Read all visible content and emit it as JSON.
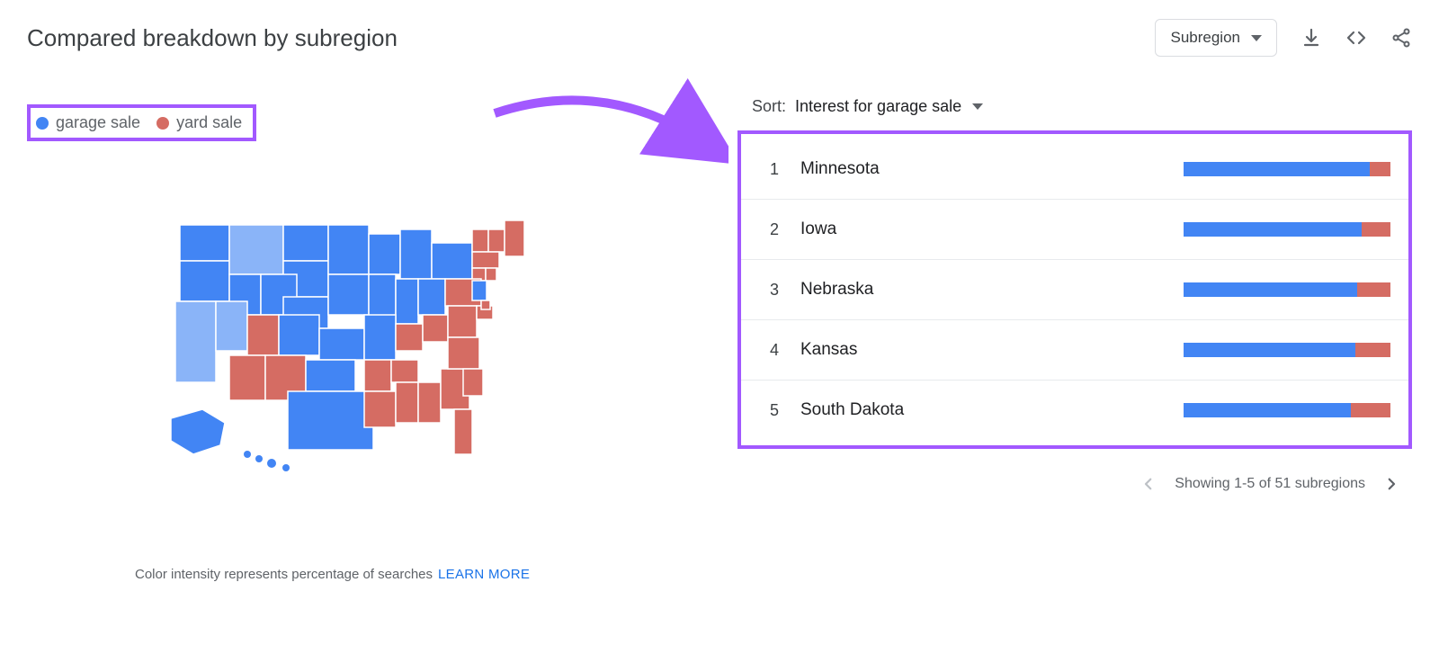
{
  "colors": {
    "blue": "#4285f4",
    "blue_light": "#8ab4f8",
    "red": "#d56c63",
    "annotation_purple": "#a259ff",
    "text": "#3c4043",
    "grey": "#5f6368",
    "divider": "#e8eaed",
    "link": "#1a73e8"
  },
  "header": {
    "title": "Compared breakdown by subregion",
    "subregion_button": "Subregion"
  },
  "legend": {
    "items": [
      {
        "label": "garage sale",
        "color": "#4285f4"
      },
      {
        "label": "yard sale",
        "color": "#d56c63"
      }
    ]
  },
  "footnote": {
    "text": "Color intensity represents percentage of searches",
    "link": "LEARN MORE"
  },
  "sort": {
    "label": "Sort:",
    "value": "Interest for garage sale"
  },
  "regions": [
    {
      "rank": 1,
      "name": "Minnesota",
      "garage_pct": 90,
      "yard_pct": 10
    },
    {
      "rank": 2,
      "name": "Iowa",
      "garage_pct": 86,
      "yard_pct": 14
    },
    {
      "rank": 3,
      "name": "Nebraska",
      "garage_pct": 84,
      "yard_pct": 16
    },
    {
      "rank": 4,
      "name": "Kansas",
      "garage_pct": 83,
      "yard_pct": 17
    },
    {
      "rank": 5,
      "name": "South Dakota",
      "garage_pct": 81,
      "yard_pct": 19
    }
  ],
  "pager": {
    "text": "Showing 1-5 of 51 subregions"
  },
  "map": {
    "type": "choropleth",
    "blue_states": [
      "WA",
      "OR",
      "CA",
      "NV",
      "ID",
      "MT",
      "WY",
      "CO",
      "ND",
      "SD",
      "NE",
      "KS",
      "OK",
      "TX",
      "MN",
      "IA",
      "MO",
      "WI",
      "IL",
      "IN",
      "MI",
      "OH",
      "NY",
      "NJ",
      "AK",
      "HI"
    ],
    "red_states": [
      "UT",
      "AZ",
      "NM",
      "AR",
      "LA",
      "MS",
      "AL",
      "TN",
      "KY",
      "GA",
      "FL",
      "SC",
      "NC",
      "VA",
      "WV",
      "MD",
      "DE",
      "PA",
      "CT",
      "RI",
      "MA",
      "NH",
      "VT",
      "ME"
    ],
    "light_blue_states": [
      "CA",
      "NV",
      "MT"
    ]
  }
}
